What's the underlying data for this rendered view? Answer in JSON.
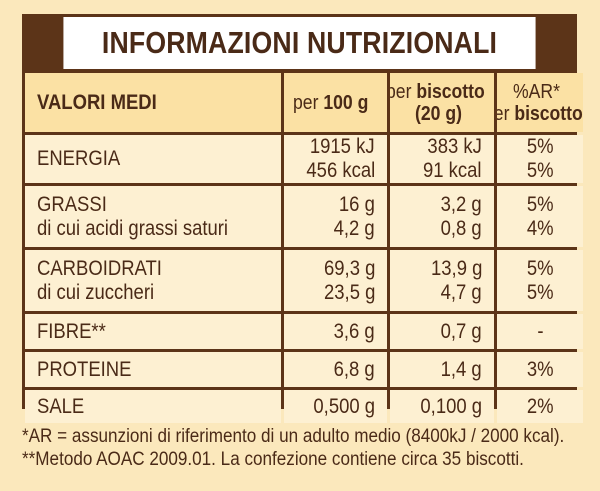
{
  "title": "INFORMAZIONI NUTRIZIONALI",
  "header": {
    "col1": "VALORI MEDI",
    "col2_prefix": "per ",
    "col2_bold": "100 g",
    "col3_prefix": "per ",
    "col3_bold": "biscotto",
    "col3_line2": "(20 g)",
    "col4_line1": "%AR*",
    "col4_prefix": "per ",
    "col4_bold": "biscotto"
  },
  "rows": [
    {
      "labels": [
        "ENERGIA"
      ],
      "per100": [
        "1915 kJ",
        "456 kcal"
      ],
      "perBiscuit": [
        "383 kJ",
        "91 kcal"
      ],
      "ar": [
        "5%",
        "5%"
      ]
    },
    {
      "labels": [
        "GRASSI",
        "di cui acidi grassi saturi"
      ],
      "per100": [
        "16 g",
        "4,2 g"
      ],
      "perBiscuit": [
        "3,2 g",
        "0,8 g"
      ],
      "ar": [
        "5%",
        "4%"
      ]
    },
    {
      "labels": [
        "CARBOIDRATI",
        "di cui zuccheri"
      ],
      "per100": [
        "69,3 g",
        "23,5 g"
      ],
      "perBiscuit": [
        "13,9 g",
        "4,7 g"
      ],
      "ar": [
        "5%",
        "5%"
      ]
    },
    {
      "labels": [
        "FIBRE**"
      ],
      "per100": [
        "3,6 g"
      ],
      "perBiscuit": [
        "0,7 g"
      ],
      "ar": [
        "-"
      ]
    },
    {
      "labels": [
        "PROTEINE"
      ],
      "per100": [
        "6,8 g"
      ],
      "perBiscuit": [
        "1,4 g"
      ],
      "ar": [
        "3%"
      ]
    },
    {
      "labels": [
        "SALE"
      ],
      "per100": [
        "0,500 g"
      ],
      "perBiscuit": [
        "0,100 g"
      ],
      "ar": [
        "2%"
      ]
    }
  ],
  "footnotes": [
    "*AR = assunzioni di riferimento di un adulto medio (8400kJ / 2000 kcal).",
    "**Metodo AOAC 2009.01. La confezione contiene circa 35 biscotti."
  ],
  "colors": {
    "background": "#fbe8bc",
    "border": "#5c3418",
    "text": "#4a2a17",
    "header_cell": "#fbe1a4",
    "body_cell": "#fdf0d2"
  }
}
